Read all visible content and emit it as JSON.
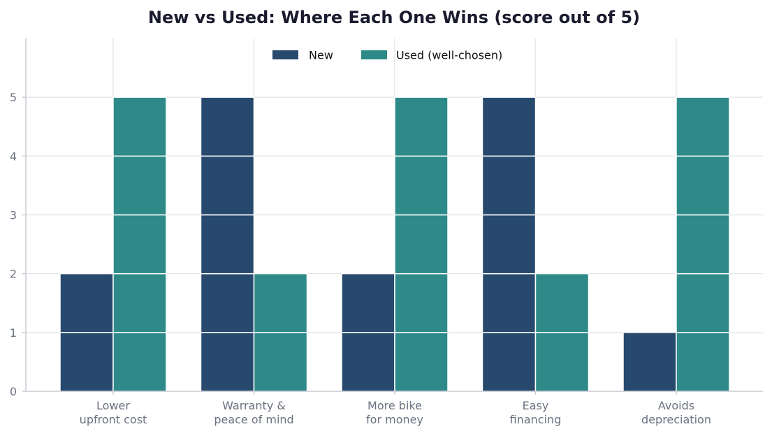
{
  "chart_data": {
    "type": "bar",
    "title": "New vs Used: Where Each One Wins (score out of 5)",
    "xlabel": "",
    "ylabel": "",
    "categories": [
      [
        "Lower",
        "upfront cost"
      ],
      [
        "Warranty &",
        "peace of mind"
      ],
      [
        "More bike",
        "for money"
      ],
      [
        "Easy",
        "financing"
      ],
      [
        "Avoids",
        "depreciation"
      ]
    ],
    "series": [
      {
        "name": "New",
        "color": "#27496d",
        "values": [
          2,
          5,
          2,
          5,
          1
        ]
      },
      {
        "name": "Used (well-chosen)",
        "color": "#2d8a89",
        "values": [
          5,
          2,
          5,
          2,
          5
        ]
      }
    ],
    "ylim": [
      0,
      6
    ],
    "yticks": [
      0,
      1,
      2,
      3,
      4,
      5
    ],
    "grid": true,
    "legend_position": "top-center",
    "colors": {
      "title": "#1b1b2f",
      "tick_label": "#6b7280",
      "grid": "#e5e7eb",
      "axis": "#c8ccd2",
      "segment_divider": "#ffffff"
    }
  }
}
